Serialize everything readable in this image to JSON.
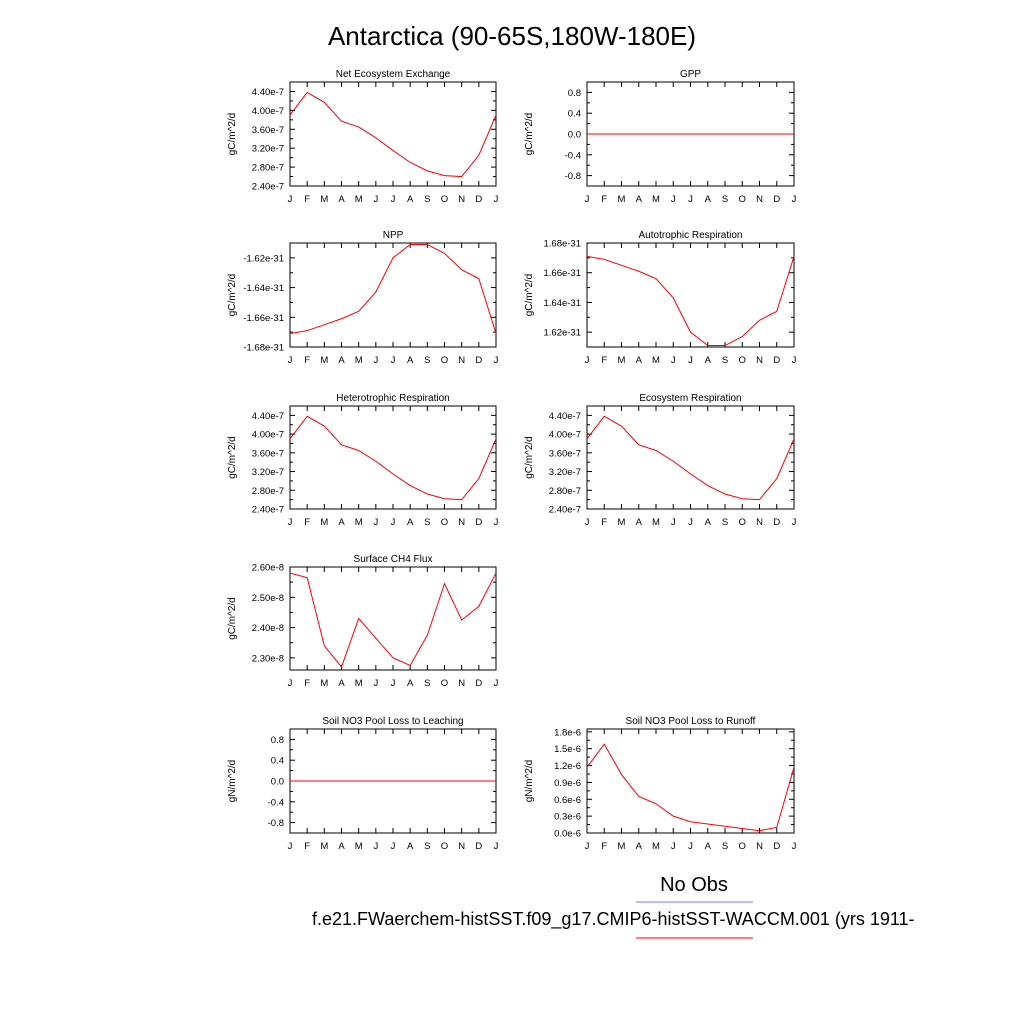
{
  "figure": {
    "title": "Antarctica (90-65S,180W-180E)",
    "legend": {
      "obs_label": "No Obs",
      "obs_color": "#6f7fef",
      "case_label": "f.e21.FWaerchem-histSST.f09_g17.CMIP6-histSST-WACCM.001 (yrs 1911-",
      "case_color": "#ff0000"
    }
  },
  "chart_data": [
    {
      "type": "line",
      "title": "Net Ecosystem Exchange",
      "ylabel": "gC/m^2/d",
      "categories": [
        "J",
        "F",
        "M",
        "A",
        "M",
        "J",
        "J",
        "A",
        "S",
        "O",
        "N",
        "D",
        "J"
      ],
      "ylim": [
        2.4e-07,
        4.6e-07
      ],
      "yticks": [
        2.4e-07,
        2.8e-07,
        3.2e-07,
        3.6e-07,
        4e-07,
        4.4e-07
      ],
      "ytick_labels": [
        "2.40e-7",
        "2.80e-7",
        "3.20e-7",
        "3.60e-7",
        "4.00e-7",
        "4.40e-7"
      ],
      "series": [
        {
          "color": "#ff0000",
          "values": [
            3.9e-07,
            4.38e-07,
            4.17e-07,
            3.77e-07,
            3.65e-07,
            3.42e-07,
            3.15e-07,
            2.9e-07,
            2.72e-07,
            2.62e-07,
            2.6e-07,
            3.05e-07,
            3.9e-07
          ]
        }
      ]
    },
    {
      "type": "line",
      "title": "GPP",
      "ylabel": "gC/m^2/d",
      "categories": [
        "J",
        "F",
        "M",
        "A",
        "M",
        "J",
        "J",
        "A",
        "S",
        "O",
        "N",
        "D",
        "J"
      ],
      "ylim": [
        -1.0,
        1.0
      ],
      "yticks": [
        -0.8,
        -0.4,
        0.0,
        0.4,
        0.8
      ],
      "ytick_labels": [
        "-0.8",
        "-0.4",
        "0.0",
        "0.4",
        "0.8"
      ],
      "series": [
        {
          "color": "#ff0000",
          "values": [
            0,
            0,
            0,
            0,
            0,
            0,
            0,
            0,
            0,
            0,
            0,
            0,
            0
          ]
        }
      ]
    },
    {
      "type": "line",
      "title": "NPP",
      "ylabel": "gC/m^2/d",
      "categories": [
        "J",
        "F",
        "M",
        "A",
        "M",
        "J",
        "J",
        "A",
        "S",
        "O",
        "N",
        "D",
        "J"
      ],
      "ylim": [
        -1.68e-31,
        -1.61e-31
      ],
      "yticks": [
        -1.68e-31,
        -1.66e-31,
        -1.64e-31,
        -1.62e-31
      ],
      "ytick_labels": [
        "-1.68e-31",
        "-1.66e-31",
        "-1.64e-31",
        "-1.62e-31"
      ],
      "series": [
        {
          "color": "#ff0000",
          "values": [
            -1.671e-31,
            -1.669e-31,
            -1.665e-31,
            -1.661e-31,
            -1.656e-31,
            -1.643e-31,
            -1.62e-31,
            -1.611e-31,
            -1.611e-31,
            -1.617e-31,
            -1.628e-31,
            -1.634e-31,
            -1.671e-31
          ]
        }
      ]
    },
    {
      "type": "line",
      "title": "Autotrophic Respiration",
      "ylabel": "gC/m^2/d",
      "categories": [
        "J",
        "F",
        "M",
        "A",
        "M",
        "J",
        "J",
        "A",
        "S",
        "O",
        "N",
        "D",
        "J"
      ],
      "ylim": [
        1.61e-31,
        1.68e-31
      ],
      "yticks": [
        1.62e-31,
        1.64e-31,
        1.66e-31,
        1.68e-31
      ],
      "ytick_labels": [
        "1.62e-31",
        "1.64e-31",
        "1.66e-31",
        "1.68e-31"
      ],
      "series": [
        {
          "color": "#ff0000",
          "values": [
            1.671e-31,
            1.669e-31,
            1.665e-31,
            1.661e-31,
            1.656e-31,
            1.643e-31,
            1.62e-31,
            1.611e-31,
            1.611e-31,
            1.617e-31,
            1.628e-31,
            1.634e-31,
            1.671e-31
          ]
        }
      ]
    },
    {
      "type": "line",
      "title": "Heterotrophic Respiration",
      "ylabel": "gC/m^2/d",
      "categories": [
        "J",
        "F",
        "M",
        "A",
        "M",
        "J",
        "J",
        "A",
        "S",
        "O",
        "N",
        "D",
        "J"
      ],
      "ylim": [
        2.4e-07,
        4.6e-07
      ],
      "yticks": [
        2.4e-07,
        2.8e-07,
        3.2e-07,
        3.6e-07,
        4e-07,
        4.4e-07
      ],
      "ytick_labels": [
        "2.40e-7",
        "2.80e-7",
        "3.20e-7",
        "3.60e-7",
        "4.00e-7",
        "4.40e-7"
      ],
      "series": [
        {
          "color": "#ff0000",
          "values": [
            3.9e-07,
            4.38e-07,
            4.17e-07,
            3.77e-07,
            3.65e-07,
            3.42e-07,
            3.15e-07,
            2.9e-07,
            2.72e-07,
            2.62e-07,
            2.6e-07,
            3.05e-07,
            3.9e-07
          ]
        }
      ]
    },
    {
      "type": "line",
      "title": "Ecosystem Respiration",
      "ylabel": "gC/m^2/d",
      "categories": [
        "J",
        "F",
        "M",
        "A",
        "M",
        "J",
        "J",
        "A",
        "S",
        "O",
        "N",
        "D",
        "J"
      ],
      "ylim": [
        2.4e-07,
        4.6e-07
      ],
      "yticks": [
        2.4e-07,
        2.8e-07,
        3.2e-07,
        3.6e-07,
        4e-07,
        4.4e-07
      ],
      "ytick_labels": [
        "2.40e-7",
        "2.80e-7",
        "3.20e-7",
        "3.60e-7",
        "4.00e-7",
        "4.40e-7"
      ],
      "series": [
        {
          "color": "#ff0000",
          "values": [
            3.9e-07,
            4.38e-07,
            4.17e-07,
            3.77e-07,
            3.65e-07,
            3.42e-07,
            3.15e-07,
            2.9e-07,
            2.72e-07,
            2.62e-07,
            2.6e-07,
            3.05e-07,
            3.9e-07
          ]
        }
      ]
    },
    {
      "type": "line",
      "title": "Surface CH4 Flux",
      "ylabel": "gC/m^2/d",
      "categories": [
        "J",
        "F",
        "M",
        "A",
        "M",
        "J",
        "J",
        "A",
        "S",
        "O",
        "N",
        "D",
        "J"
      ],
      "ylim": [
        2.26e-08,
        2.6e-08
      ],
      "yticks": [
        2.3e-08,
        2.4e-08,
        2.5e-08,
        2.6e-08
      ],
      "ytick_labels": [
        "2.30e-8",
        "2.40e-8",
        "2.50e-8",
        "2.60e-8"
      ],
      "series": [
        {
          "color": "#ff0000",
          "values": [
            2.58e-08,
            2.565e-08,
            2.34e-08,
            2.27e-08,
            2.43e-08,
            2.365e-08,
            2.3e-08,
            2.275e-08,
            2.375e-08,
            2.545e-08,
            2.425e-08,
            2.47e-08,
            2.58e-08
          ]
        }
      ]
    },
    {
      "type": "line",
      "title": "Soil NO3 Pool Loss to Leaching",
      "ylabel": "gN/m^2/d",
      "categories": [
        "J",
        "F",
        "M",
        "A",
        "M",
        "J",
        "J",
        "A",
        "S",
        "O",
        "N",
        "D",
        "J"
      ],
      "ylim": [
        -1.0,
        1.0
      ],
      "yticks": [
        -0.8,
        -0.4,
        0.0,
        0.4,
        0.8
      ],
      "ytick_labels": [
        "-0.8",
        "-0.4",
        "0.0",
        "0.4",
        "0.8"
      ],
      "series": [
        {
          "color": "#ff0000",
          "values": [
            0,
            0,
            0,
            0,
            0,
            0,
            0,
            0,
            0,
            0,
            0,
            0,
            0
          ]
        }
      ]
    },
    {
      "type": "line",
      "title": "Soil NO3 Pool Loss to Runoff",
      "ylabel": "gN/m^2/d",
      "categories": [
        "J",
        "F",
        "M",
        "A",
        "M",
        "J",
        "J",
        "A",
        "S",
        "O",
        "N",
        "D",
        "J"
      ],
      "ylim": [
        0.0,
        1.85e-06
      ],
      "yticks": [
        0.0,
        3e-07,
        6e-07,
        9e-07,
        1.2e-06,
        1.5e-06,
        1.8e-06
      ],
      "ytick_labels": [
        "0.0e-6",
        "0.3e-6",
        "0.6e-6",
        "0.9e-6",
        "1.2e-6",
        "1.5e-6",
        "1.8e-6"
      ],
      "series": [
        {
          "color": "#ff0000",
          "values": [
            1.17e-06,
            1.58e-06,
            1.04e-06,
            6.5e-07,
            5.2e-07,
            3e-07,
            2e-07,
            1.6e-07,
            1.2e-07,
            8e-08,
            4e-08,
            1e-07,
            1.17e-06
          ]
        }
      ]
    }
  ]
}
